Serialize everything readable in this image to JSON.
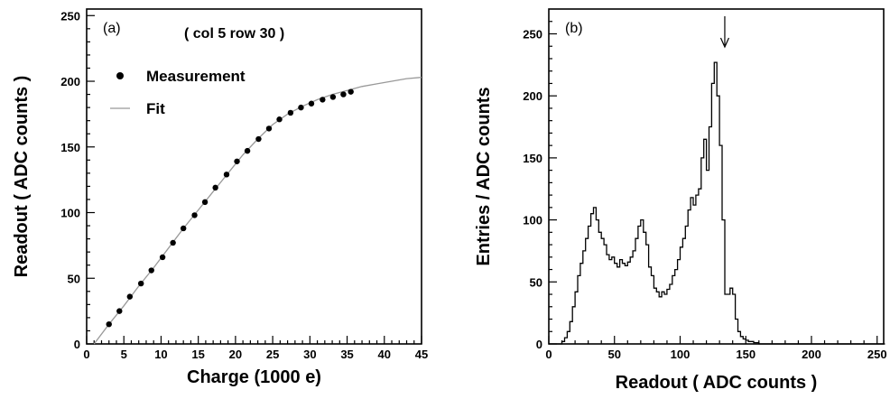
{
  "chart_data": [
    {
      "type": "scatter",
      "panel_label": "(a)",
      "annotation": "( col 5 row 30 )",
      "xlabel": "Charge (1000 e)",
      "ylabel": "Readout ( ADC counts )",
      "xlim": [
        0,
        45
      ],
      "ylim": [
        0,
        255
      ],
      "xticks": [
        0,
        5,
        10,
        15,
        20,
        25,
        30,
        35,
        40,
        45
      ],
      "yticks": [
        0,
        50,
        100,
        150,
        200,
        250
      ],
      "legend": {
        "position": "top-left",
        "entries": [
          "Measurement",
          "Fit"
        ]
      },
      "series": [
        {
          "name": "Measurement",
          "x": [
            3.0,
            4.4,
            5.8,
            7.3,
            8.7,
            10.2,
            11.6,
            13.0,
            14.5,
            15.9,
            17.3,
            18.8,
            20.2,
            21.6,
            23.1,
            24.5,
            25.9,
            27.4,
            28.8,
            30.2,
            31.7,
            33.1,
            34.5,
            35.5
          ],
          "y": [
            15,
            25,
            36,
            46,
            56,
            66,
            77,
            88,
            98,
            108,
            119,
            129,
            139,
            147,
            156,
            164,
            171,
            176,
            180,
            183,
            186,
            188,
            190,
            192
          ]
        },
        {
          "name": "Fit",
          "x": [
            1.0,
            3,
            5,
            7,
            9,
            11,
            13,
            15,
            17,
            19,
            21,
            23,
            25,
            27,
            29,
            31,
            33,
            35,
            37,
            39,
            41,
            43,
            45
          ],
          "y": [
            0,
            15,
            29,
            44,
            58,
            73,
            88,
            102,
            116,
            130,
            144,
            156,
            167,
            175,
            181,
            186,
            190,
            193,
            196,
            198,
            200,
            202,
            203
          ]
        }
      ]
    },
    {
      "type": "histogram",
      "panel_label": "(b)",
      "xlabel": "Readout ( ADC counts )",
      "ylabel": "Entries / ADC counts",
      "xlim": [
        0,
        255
      ],
      "ylim": [
        0,
        270
      ],
      "xticks": [
        0,
        50,
        100,
        150,
        200,
        250
      ],
      "yticks": [
        0,
        50,
        100,
        150,
        200,
        250
      ],
      "peak_marker_x": 134,
      "bins": {
        "start": 0,
        "width": 2
      },
      "values": [
        0,
        0,
        0,
        0,
        0,
        2,
        5,
        10,
        18,
        30,
        42,
        55,
        65,
        75,
        85,
        95,
        105,
        110,
        100,
        90,
        85,
        80,
        72,
        68,
        70,
        65,
        62,
        68,
        65,
        63,
        66,
        70,
        75,
        85,
        95,
        100,
        90,
        80,
        62,
        55,
        45,
        42,
        38,
        42,
        40,
        44,
        48,
        55,
        60,
        68,
        78,
        85,
        95,
        108,
        118,
        112,
        120,
        125,
        150,
        165,
        140,
        175,
        210,
        227,
        200,
        160,
        100,
        40,
        40,
        45,
        40,
        20,
        10,
        6,
        4,
        3,
        2,
        2,
        1,
        1,
        0,
        0,
        0,
        0,
        0,
        0,
        0,
        0,
        0,
        0,
        0,
        0,
        0,
        0,
        0,
        0,
        0,
        0,
        0,
        0,
        0,
        0,
        0,
        0,
        0,
        0,
        0,
        0,
        0,
        0,
        0,
        0,
        0,
        0,
        0,
        0,
        0,
        0,
        0,
        0,
        0,
        0,
        0,
        0,
        0,
        0,
        0,
        0
      ]
    }
  ]
}
